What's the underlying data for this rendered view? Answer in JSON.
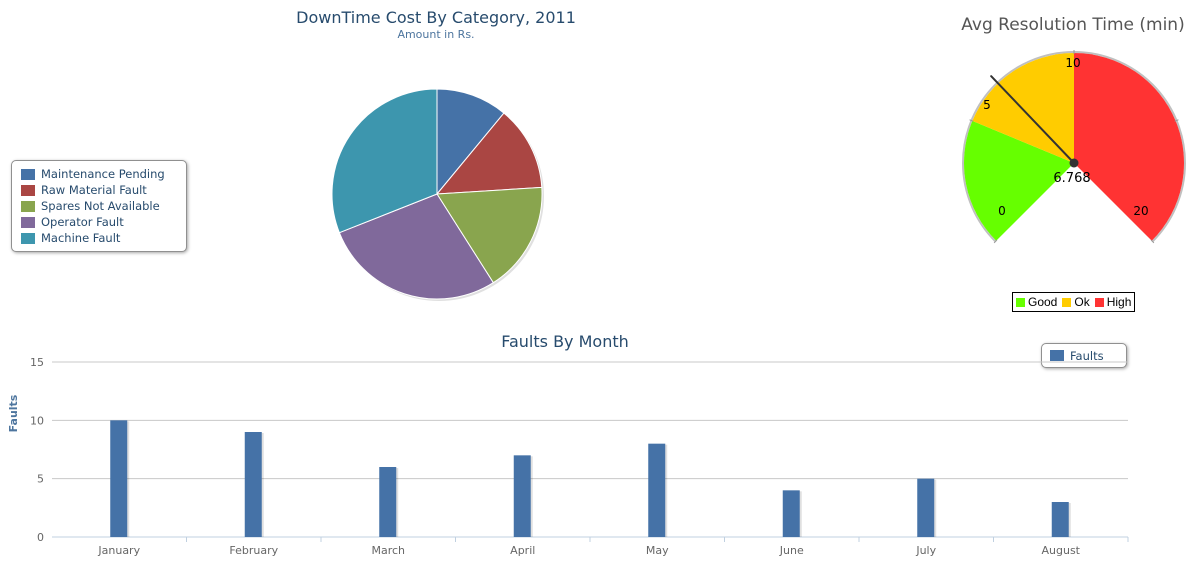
{
  "chart_data": [
    {
      "type": "pie",
      "title": "DownTime Cost By Category, 2011",
      "subtitle": "Amount in Rs.",
      "slices": [
        {
          "name": "Maintenance Pending",
          "value": 11,
          "color": "#4572A7"
        },
        {
          "name": "Raw Material Fault",
          "value": 13,
          "color": "#AA4643"
        },
        {
          "name": "Spares Not Available",
          "value": 17,
          "color": "#89A54E"
        },
        {
          "name": "Operator Fault",
          "value": 28,
          "color": "#80699B"
        },
        {
          "name": "Machine Fault",
          "value": 31,
          "color": "#3D96AE"
        }
      ],
      "legend_position": "left"
    },
    {
      "type": "gauge",
      "title": "Avg Resolution Time (min)",
      "value": 6.768,
      "value_label": "6.768",
      "min": 0,
      "max": 20,
      "tick_labels": [
        "0",
        "5",
        "10",
        "20"
      ],
      "bands": [
        {
          "name": "Good",
          "from": 0,
          "to": 5,
          "color": "#66FF00"
        },
        {
          "name": "Ok",
          "from": 5,
          "to": 10,
          "color": "#FFCC00"
        },
        {
          "name": "High",
          "from": 10,
          "to": 20,
          "color": "#FF3333"
        }
      ],
      "legend_position": "bottom-right"
    },
    {
      "type": "bar",
      "title": "Faults By Month",
      "ylabel": "Faults",
      "xlabel": "",
      "ylim": [
        0,
        15
      ],
      "yticks": [
        "0",
        "5",
        "10",
        "15"
      ],
      "categories": [
        "January",
        "February",
        "March",
        "April",
        "May",
        "June",
        "July",
        "August"
      ],
      "series": [
        {
          "name": "Faults",
          "values": [
            10,
            9,
            6,
            7,
            8,
            4,
            5,
            3
          ],
          "color": "#4572A7"
        }
      ],
      "grid": true,
      "legend_position": "top-right"
    }
  ]
}
